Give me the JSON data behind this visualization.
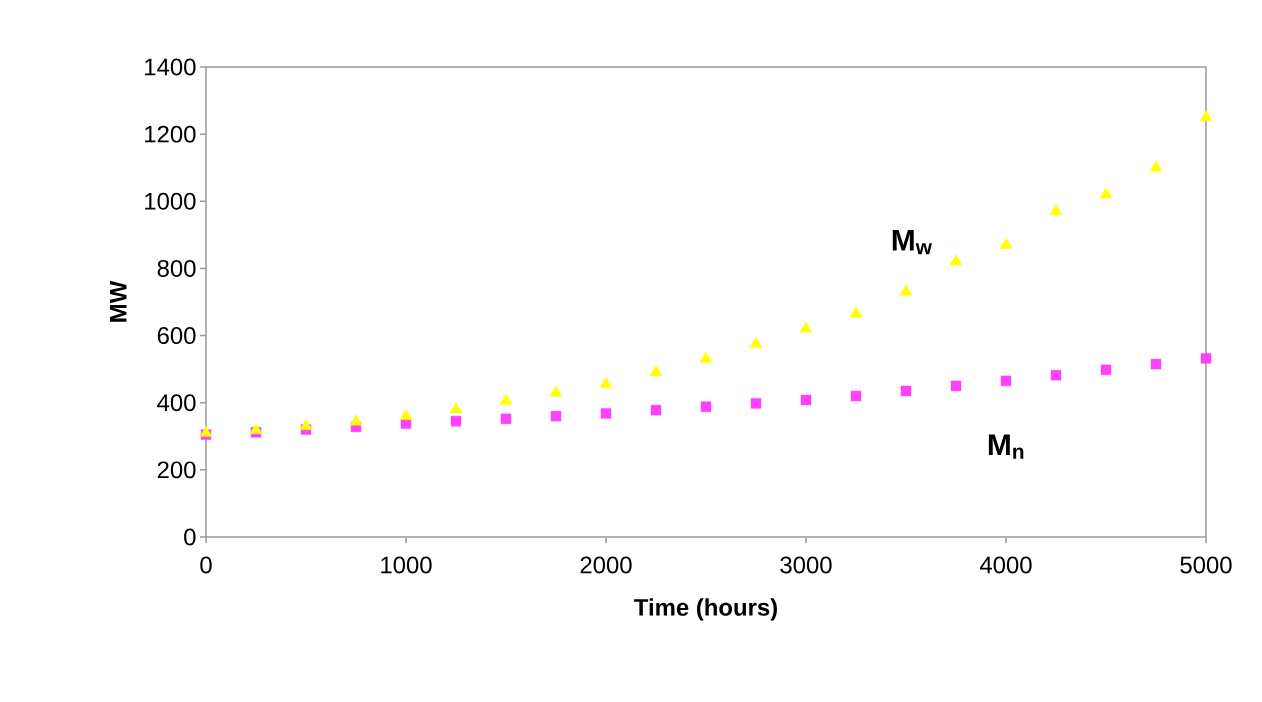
{
  "chart_data": {
    "type": "scatter",
    "xlabel": "Time (hours)",
    "ylabel": "MW",
    "xlim": [
      0,
      5000
    ],
    "ylim": [
      0,
      1400
    ],
    "xticks": [
      0,
      1000,
      2000,
      3000,
      4000,
      5000
    ],
    "yticks": [
      0,
      200,
      400,
      600,
      800,
      1000,
      1200,
      1400
    ],
    "grid": false,
    "legend": false,
    "series": [
      {
        "name": "M$_{w}$",
        "color": "#ffff00",
        "marker": "triangle",
        "x": [
          0,
          250,
          500,
          750,
          1000,
          1250,
          1500,
          1750,
          2000,
          2250,
          2500,
          2750,
          3000,
          3250,
          3500,
          3750,
          4000,
          4250,
          4500,
          4750,
          5000
        ],
        "values": [
          310,
          318,
          330,
          343,
          360,
          380,
          405,
          430,
          455,
          490,
          530,
          575,
          620,
          665,
          730,
          820,
          870,
          970,
          1020,
          1100,
          1250
        ]
      },
      {
        "name": "M$_{n}$",
        "color": "#ff40ff",
        "marker": "square",
        "x": [
          0,
          250,
          500,
          750,
          1000,
          1250,
          1500,
          1750,
          2000,
          2250,
          2500,
          2750,
          3000,
          3250,
          3500,
          3750,
          4000,
          4250,
          4500,
          4750,
          5000
        ],
        "values": [
          305,
          312,
          320,
          328,
          338,
          345,
          352,
          360,
          368,
          378,
          388,
          398,
          408,
          420,
          435,
          450,
          465,
          482,
          498,
          515,
          532
        ]
      }
    ]
  }
}
